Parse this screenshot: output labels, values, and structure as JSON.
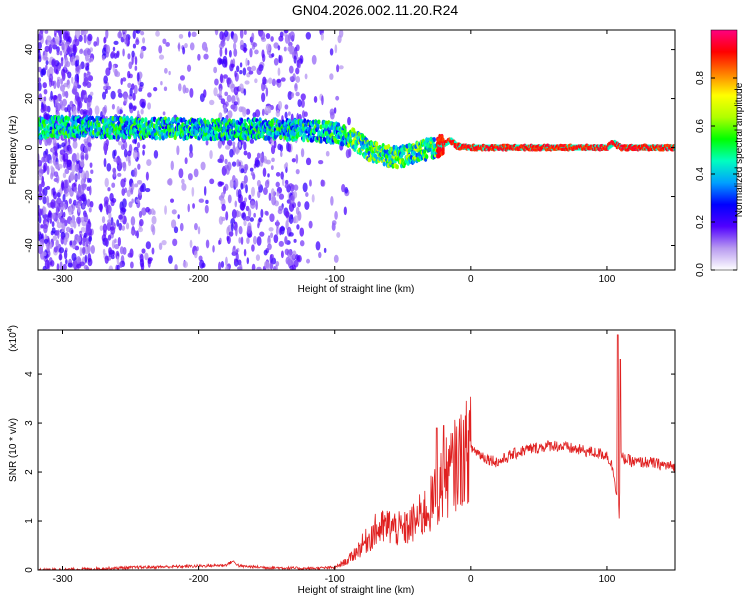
{
  "title": "GN04.2026.002.11.20.R24",
  "chart_data": [
    {
      "type": "heatmap",
      "title": "GN04.2026.002.11.20.R24",
      "xlabel": "Height of straight line (km)",
      "ylabel": "Frequency (Hz)",
      "xlim": [
        -318,
        150
      ],
      "ylim": [
        -50,
        48
      ],
      "xticks": [
        -300,
        -200,
        -100,
        0,
        100
      ],
      "yticks": [
        -40,
        -20,
        0,
        20,
        40
      ],
      "colorbar": {
        "label": "Normalized spectral amplitude",
        "range": [
          0,
          1
        ],
        "ticks": [
          0.0,
          0.2,
          0.4,
          0.6,
          0.8
        ],
        "tick_labels": [
          "0.0",
          "0.2",
          "0.4",
          "0.6",
          "0.8"
        ],
        "colors": [
          "#ffffff",
          "#b89af0",
          "#5000ff",
          "#0000ff",
          "#00a0ff",
          "#00ffc0",
          "#00ff00",
          "#b0ff00",
          "#ffff00",
          "#ff8000",
          "#ff0000",
          "#ff0080"
        ]
      },
      "ridge": {
        "x": [
          -318,
          -300,
          -250,
          -200,
          -150,
          -120,
          -100,
          -85,
          -75,
          -65,
          -55,
          -45,
          -35,
          -25,
          -18,
          -15,
          -10,
          0,
          50,
          100,
          105,
          110,
          150
        ],
        "y": [
          8,
          8.5,
          8,
          7.5,
          7.5,
          7,
          6,
          3,
          -1,
          -3,
          -4,
          -3,
          -1,
          0,
          2,
          3,
          0.5,
          0,
          0,
          0,
          2,
          0,
          0
        ]
      }
    },
    {
      "type": "line",
      "xlabel": "Height of straight line (km)",
      "ylabel": "SNR (10 * v/v)",
      "yscale_label_base": "(x10",
      "yscale_label_exp": "4",
      "yscale_label_end": ")",
      "xlim": [
        -318,
        150
      ],
      "ylim": [
        0,
        4.9
      ],
      "xticks": [
        -300,
        -200,
        -100,
        0,
        100
      ],
      "yticks": [
        0,
        1,
        2,
        3,
        4
      ],
      "color": "#e02020",
      "series": [
        {
          "x": [
            -318,
            -280,
            -250,
            -200,
            -180,
            -175,
            -170,
            -150,
            -120,
            -100,
            -90,
            -80,
            -70,
            -60,
            -50,
            -40,
            -30,
            -20,
            -10,
            0,
            10,
            20,
            30,
            40,
            50,
            60,
            70,
            80,
            90,
            100,
            104,
            106,
            108,
            109,
            110,
            115,
            120,
            130,
            140,
            150
          ],
          "y": [
            0.0,
            0.02,
            0.05,
            0.08,
            0.1,
            0.18,
            0.08,
            0.05,
            0.03,
            0.05,
            0.2,
            0.5,
            0.8,
            0.9,
            0.8,
            1.0,
            1.3,
            1.8,
            2.2,
            2.5,
            2.3,
            2.2,
            2.35,
            2.45,
            2.5,
            2.55,
            2.5,
            2.45,
            2.4,
            2.35,
            2.1,
            1.8,
            1.4,
            1.15,
            2.3,
            2.25,
            2.2,
            2.2,
            2.15,
            2.1
          ]
        }
      ],
      "peaks": [
        {
          "x": 108,
          "y": 4.8
        },
        {
          "x": 110,
          "y": 4.3
        },
        {
          "x": -25,
          "y": 2.9
        },
        {
          "x": -20,
          "y": 2.95
        }
      ]
    }
  ]
}
